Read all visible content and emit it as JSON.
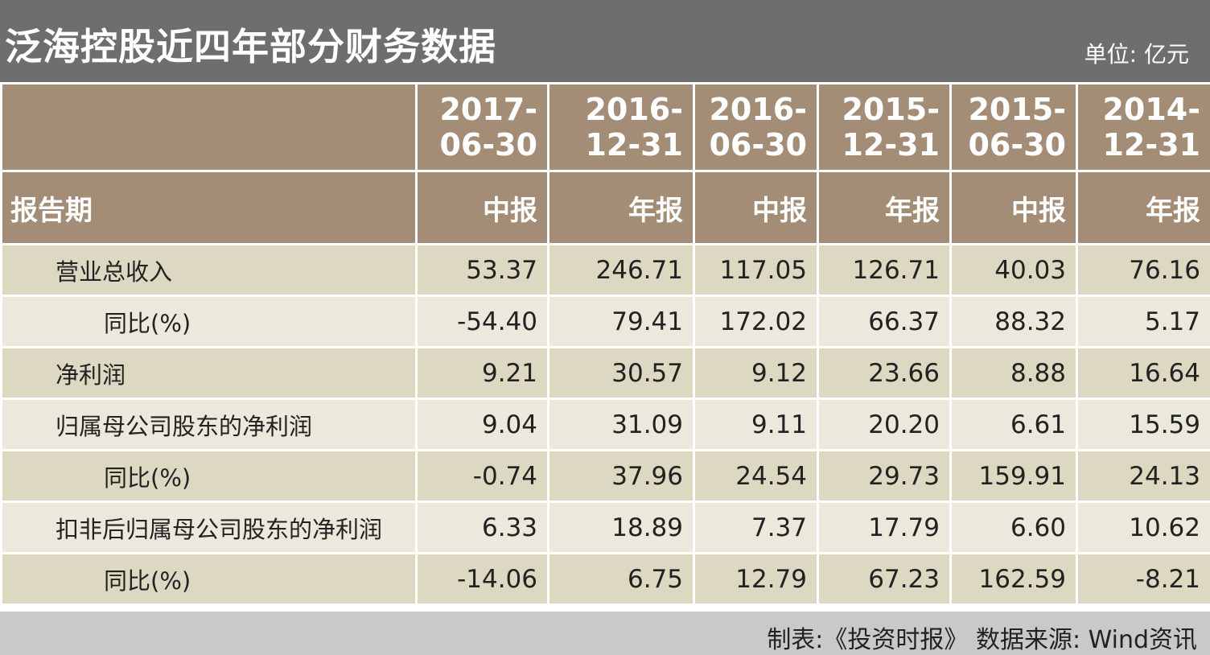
{
  "header": {
    "title": "泛海控股近四年部分财务数据",
    "unit": "单位: 亿元"
  },
  "table": {
    "columns": [
      {
        "date_line1": "2017-",
        "date_line2": "06-30",
        "type": "中报"
      },
      {
        "date_line1": "2016-",
        "date_line2": "12-31",
        "type": "年报"
      },
      {
        "date_line1": "2016-",
        "date_line2": "06-30",
        "type": "中报"
      },
      {
        "date_line1": "2015-",
        "date_line2": "12-31",
        "type": "年报"
      },
      {
        "date_line1": "2015-",
        "date_line2": "06-30",
        "type": "中报"
      },
      {
        "date_line1": "2014-",
        "date_line2": "12-31",
        "type": "年报"
      }
    ],
    "period_label": "报告期",
    "rows": [
      {
        "label": "营业总收入",
        "values": [
          "53.37",
          "246.71",
          "117.05",
          "126.71",
          "40.03",
          "76.16"
        ]
      },
      {
        "label": "同比(%)",
        "values": [
          "-54.40",
          "79.41",
          "172.02",
          "66.37",
          "88.32",
          "5.17"
        ]
      },
      {
        "label": "净利润",
        "values": [
          "9.21",
          "30.57",
          "9.12",
          "23.66",
          "8.88",
          "16.64"
        ]
      },
      {
        "label": "归属母公司股东的净利润",
        "values": [
          "9.04",
          "31.09",
          "9.11",
          "20.20",
          "6.61",
          "15.59"
        ]
      },
      {
        "label": "同比(%)",
        "values": [
          "-0.74",
          "37.96",
          "24.54",
          "29.73",
          "159.91",
          "24.13"
        ]
      },
      {
        "label": "扣非后归属母公司股东的净利润",
        "values": [
          "6.33",
          "18.89",
          "7.37",
          "17.79",
          "6.60",
          "10.62"
        ]
      },
      {
        "label": "同比(%)",
        "values": [
          "-14.06",
          "6.75",
          "12.79",
          "67.23",
          "162.59",
          "-8.21"
        ]
      }
    ]
  },
  "footer": {
    "source": "制表:《投资时报》 数据来源: Wind资讯"
  },
  "colors": {
    "title_bg": "#6e6e6e",
    "header_bg": "#a48d76",
    "row_odd_bg": "#ddd8c2",
    "row_even_bg": "#ebe8dc",
    "footer_bg": "#c9c9c9"
  }
}
